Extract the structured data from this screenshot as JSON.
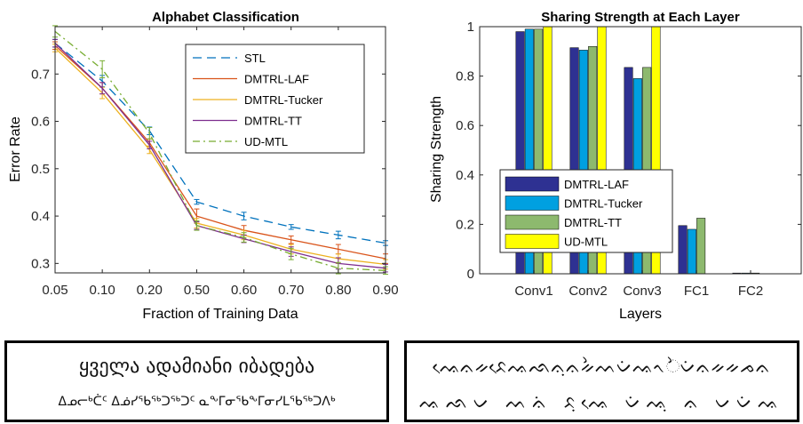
{
  "chart_data": [
    {
      "type": "line",
      "title": "Alphabet Classification",
      "xlabel": "Fraction of Training Data",
      "ylabel": "Error Rate",
      "x": [
        "0.05",
        "0.10",
        "0.20",
        "0.50",
        "0.60",
        "0.70",
        "0.80",
        "0.90"
      ],
      "ylim": [
        0.28,
        0.8
      ],
      "yticks": [
        "0.3",
        "0.4",
        "0.5",
        "0.6",
        "0.7"
      ],
      "ytick_values": [
        0.3,
        0.4,
        0.5,
        0.6,
        0.7
      ],
      "legend_position": "top-right",
      "series": [
        {
          "name": "STL",
          "color": "#0072BD",
          "dash": "dashed",
          "values": [
            0.765,
            0.685,
            0.58,
            0.43,
            0.4,
            0.377,
            0.36,
            0.343
          ],
          "errors": [
            0.008,
            0.012,
            0.008,
            0.005,
            0.008,
            0.005,
            0.008,
            0.005
          ]
        },
        {
          "name": "DMTRL-LAF",
          "color": "#D95319",
          "dash": "solid",
          "values": [
            0.76,
            0.67,
            0.555,
            0.4,
            0.37,
            0.35,
            0.33,
            0.31
          ],
          "errors": [
            0.008,
            0.012,
            0.008,
            0.015,
            0.01,
            0.008,
            0.01,
            0.01
          ]
        },
        {
          "name": "DMTRL-Tucker",
          "color": "#EDB120",
          "dash": "solid",
          "values": [
            0.755,
            0.66,
            0.54,
            0.385,
            0.36,
            0.33,
            0.31,
            0.298
          ],
          "errors": [
            0.008,
            0.012,
            0.008,
            0.01,
            0.01,
            0.01,
            0.01,
            0.01
          ]
        },
        {
          "name": "DMTRL-TT",
          "color": "#7E2F8E",
          "dash": "solid",
          "values": [
            0.765,
            0.67,
            0.55,
            0.38,
            0.352,
            0.325,
            0.3,
            0.29
          ],
          "errors": [
            0.008,
            0.012,
            0.008,
            0.008,
            0.008,
            0.01,
            0.012,
            0.008
          ]
        },
        {
          "name": "UD-MTL",
          "color": "#77AC30",
          "dash": "dashdot",
          "values": [
            0.79,
            0.71,
            0.575,
            0.38,
            0.355,
            0.32,
            0.29,
            0.285
          ],
          "errors": [
            0.012,
            0.018,
            0.012,
            0.01,
            0.01,
            0.012,
            0.012,
            0.008
          ]
        }
      ]
    },
    {
      "type": "bar",
      "title": "Sharing Strength at Each Layer",
      "xlabel": "Layers",
      "ylabel": "Sharing Strength",
      "categories": [
        "Conv1",
        "Conv2",
        "Conv3",
        "FC1",
        "FC2"
      ],
      "ylim": [
        0,
        1
      ],
      "yticks": [
        "0",
        "0.2",
        "0.4",
        "0.6",
        "0.8",
        "1"
      ],
      "ytick_values": [
        0,
        0.2,
        0.4,
        0.6,
        0.8,
        1
      ],
      "legend_position": "bottom-left",
      "series": [
        {
          "name": "DMTRL-LAF",
          "color": "#2E3192",
          "values": [
            0.98,
            0.915,
            0.835,
            0.195,
            0.003
          ]
        },
        {
          "name": "DMTRL-Tucker",
          "color": "#00A0E0",
          "values": [
            0.99,
            0.905,
            0.79,
            0.18,
            0.003
          ]
        },
        {
          "name": "DMTRL-TT",
          "color": "#8DB96E",
          "values": [
            0.99,
            0.92,
            0.835,
            0.225,
            0.003
          ]
        },
        {
          "name": "UD-MTL",
          "color": "#FFFF00",
          "values": [
            1.0,
            1.0,
            1.0,
            0.0,
            0.0
          ]
        }
      ]
    }
  ],
  "samples": {
    "left_line1": "ყველა ადამიანი იბადება",
    "left_line2": "ᐃᓄᓕᒃᑖᑦ ᐃᓅᓯᖃᖅᑐᖅᑐᑦ ᓇᖕᒥᓂᖃᖕᒥᓂᓯᒪᖃᖅᑐᐱᒃ",
    "right_line1": "ᨕᨙᨊᨀᨅᨙᨕᨒᨊᨘᨊᨀᨛᨓᨆᨗᨕᨚᨛᨆᨗᨊᨀᨀᨍᨊ",
    "right_line2": "ᨕᨒᨆ ᨓᨊᨗ ᨅᨘᨕᨙ ᨆᨗᨕᨘ ᨊ ᨆᨆᨗᨕ"
  }
}
